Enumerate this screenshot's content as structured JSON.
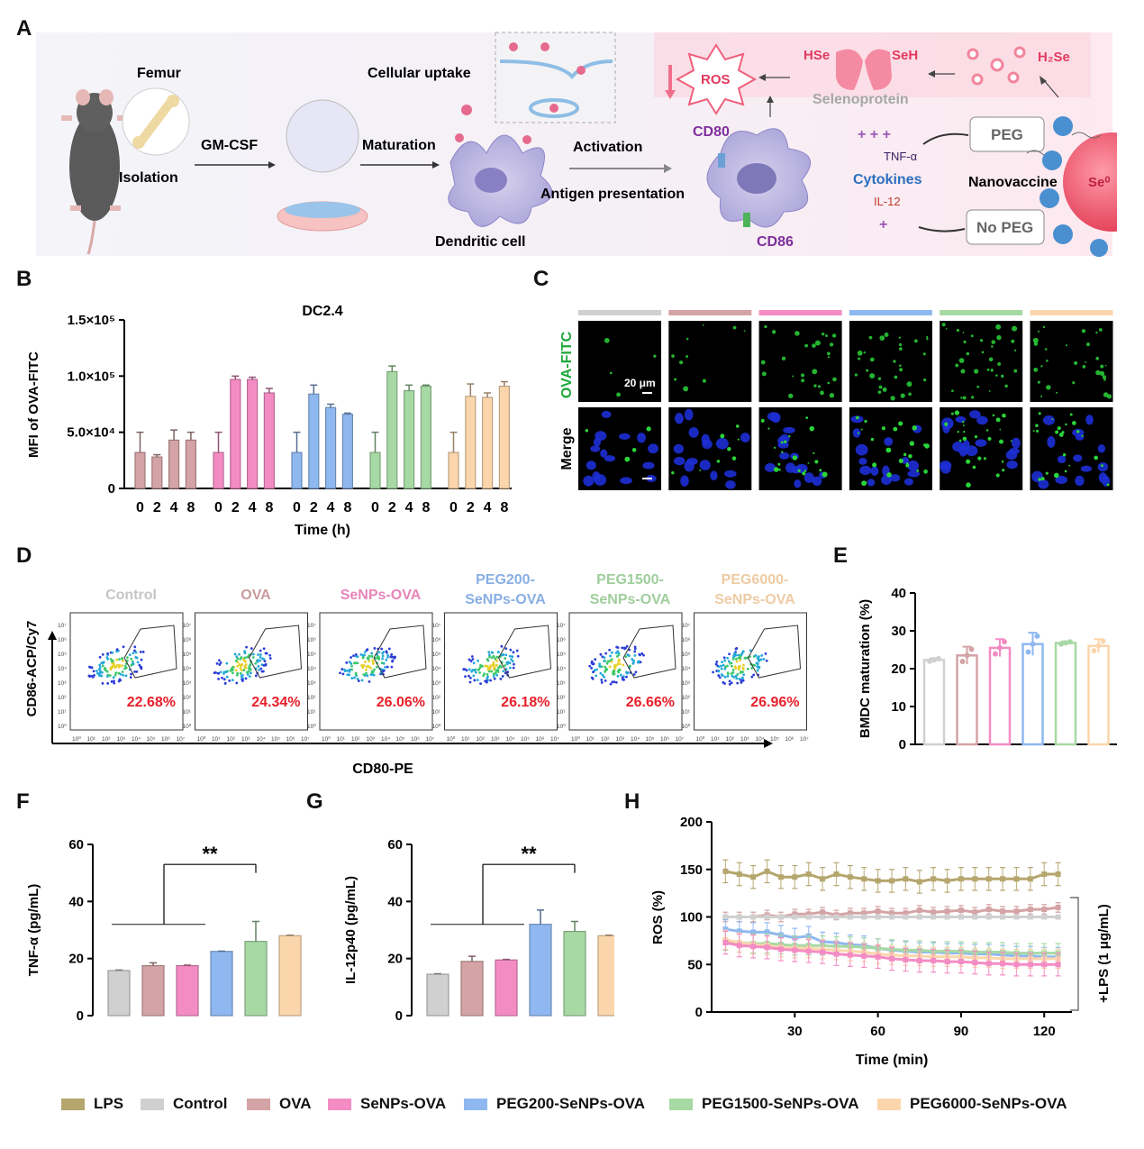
{
  "colors": {
    "LPS": "#b5a66e",
    "Control": "#d0d0d0",
    "OVA": "#d4a3a5",
    "SeNPs-OVA": "#f48cc4",
    "PEG200-SeNPs-OVA": "#8fb8f0",
    "PEG1500-SeNPs-OVA": "#a7d9a4",
    "PEG6000-SeNPs-OVA": "#fbd6ac"
  },
  "panels": {
    "A": "A",
    "B": "B",
    "C": "C",
    "D": "D",
    "E": "E",
    "F": "F",
    "G": "G",
    "H": "H"
  },
  "schematic": {
    "femur": "Femur",
    "isolation": "Isolation",
    "gmcsf": "GM-CSF",
    "cellular_uptake": "Cellular uptake",
    "maturation": "Maturation",
    "dendritic_cell": "Dendritic cell",
    "activation": "Activation",
    "antigen_presentation": "Antigen presentation",
    "cd80": "CD80",
    "cd86": "CD86",
    "ros": "ROS",
    "hse": "HSe",
    "seh": "SeH",
    "selenoprotein": "Selenoprotein",
    "h2se": "H₂Se",
    "tnfa": "TNF-α",
    "cytokines": "Cytokines",
    "il12": "IL-12",
    "peg": "PEG",
    "no_peg": "No PEG",
    "nanovaccine": "Nanovaccine",
    "se0": "Se⁰"
  },
  "microscopy": {
    "row1": "OVA-FITC",
    "row2": "Merge",
    "scale": "20 μm",
    "groups": [
      "Control",
      "OVA",
      "SeNPs-OVA",
      "PEG200-SeNPs-OVA",
      "PEG1500-SeNPs-OVA",
      "PEG6000-SeNPs-OVA"
    ]
  },
  "flow": {
    "titles": [
      "Control",
      "OVA",
      "SeNPs-OVA",
      "PEG200-\nSeNPs-OVA",
      "PEG1500-\nSeNPs-OVA",
      "PEG6000-\nSeNPs-OVA"
    ],
    "percents": [
      "22.68%",
      "24.34%",
      "26.06%",
      "26.18%",
      "26.66%",
      "26.96%"
    ],
    "tick_labels": [
      "10⁰",
      "10¹",
      "10²",
      "10³",
      "10⁴",
      "10⁵",
      "10⁶",
      "10⁷"
    ],
    "xlabel": "CD80-PE",
    "ylabel": "CD86-ACP/Cy7"
  },
  "chart_data": [
    {
      "panel": "B",
      "type": "bar",
      "title": "DC2.4",
      "xlabel": "Time (h)",
      "ylabel": "MFI of OVA-FITC",
      "ylim": [
        0,
        150000
      ],
      "yticks": [
        0,
        50000,
        100000,
        150000
      ],
      "ytick_labels": [
        "0",
        "5.0×10⁴",
        "1.0×10⁵",
        "1.5×10⁵"
      ],
      "categories": [
        "0",
        "2",
        "4",
        "8"
      ],
      "series": [
        {
          "group": "OVA",
          "values": [
            32000,
            28000,
            43000,
            43000
          ],
          "errors": [
            18000,
            2000,
            9000,
            7000
          ]
        },
        {
          "group": "SeNPs-OVA",
          "values": [
            32000,
            97000,
            97000,
            85000
          ],
          "errors": [
            18000,
            3000,
            2000,
            4000
          ]
        },
        {
          "group": "PEG200-SeNPs-OVA",
          "values": [
            32000,
            84000,
            72000,
            66000
          ],
          "errors": [
            18000,
            8000,
            3000,
            1000
          ]
        },
        {
          "group": "PEG1500-SeNPs-OVA",
          "values": [
            32000,
            104000,
            87000,
            91000
          ],
          "errors": [
            18000,
            5000,
            5000,
            1000
          ]
        },
        {
          "group": "PEG6000-SeNPs-OVA",
          "values": [
            32000,
            82000,
            81000,
            91000
          ],
          "errors": [
            18000,
            11000,
            4000,
            4000
          ]
        }
      ]
    },
    {
      "panel": "E",
      "type": "bar",
      "ylabel": "BMDC maturation (%)",
      "ylim": [
        0,
        40
      ],
      "yticks": [
        0,
        10,
        20,
        30,
        40
      ],
      "categories": [
        "Control",
        "OVA",
        "SeNPs-OVA",
        "PEG200-SeNPs-OVA",
        "PEG1500-SeNPs-OVA",
        "PEG6000-SeNPs-OVA"
      ],
      "values": [
        22.3,
        23.5,
        25.5,
        26.5,
        26.8,
        26.0
      ],
      "errors": [
        0.5,
        2.3,
        2.3,
        3.0,
        0.4,
        1.8
      ]
    },
    {
      "panel": "F",
      "type": "bar",
      "ylabel": "TNF-α (pg/mL)",
      "ylim": [
        0,
        60
      ],
      "yticks": [
        0,
        20,
        40,
        60
      ],
      "categories": [
        "Control",
        "OVA",
        "SeNPs-OVA",
        "PEG200-SeNPs-OVA",
        "PEG1500-SeNPs-OVA",
        "PEG6000-SeNPs-OVA"
      ],
      "values": [
        15.8,
        17.5,
        17.5,
        22.5,
        26.0,
        28.0
      ],
      "errors": [
        0.2,
        1.0,
        0.2,
        0.1,
        7.0,
        0.2
      ],
      "annotation": "**"
    },
    {
      "panel": "G",
      "type": "bar",
      "ylabel": "IL-12p40 (pg/mL)",
      "ylim": [
        0,
        60
      ],
      "yticks": [
        0,
        20,
        40,
        60
      ],
      "categories": [
        "Control",
        "OVA",
        "SeNPs-OVA",
        "PEG200-SeNPs-OVA",
        "PEG1500-SeNPs-OVA",
        "PEG6000-SeNPs-OVA"
      ],
      "values": [
        14.5,
        19.0,
        19.5,
        32.0,
        29.5,
        28.0
      ],
      "errors": [
        0.2,
        1.8,
        0.2,
        5.0,
        3.5,
        0.2
      ],
      "annotation": "**"
    },
    {
      "panel": "H",
      "type": "line",
      "xlabel": "Time (min)",
      "ylabel": "ROS (%)",
      "xlim": [
        0,
        130
      ],
      "xticks": [
        30,
        60,
        90,
        120
      ],
      "ylim": [
        0,
        200
      ],
      "yticks": [
        0,
        50,
        100,
        150,
        200
      ],
      "annotation": "+LPS (1 μg/mL)",
      "x": [
        5,
        10,
        15,
        20,
        25,
        30,
        35,
        40,
        45,
        50,
        55,
        60,
        65,
        70,
        75,
        80,
        85,
        90,
        95,
        100,
        105,
        110,
        115,
        120,
        125
      ],
      "series": [
        {
          "group": "LPS",
          "values": [
            148,
            145,
            142,
            148,
            142,
            142,
            145,
            140,
            145,
            142,
            140,
            138,
            138,
            140,
            137,
            140,
            138,
            140,
            140,
            140,
            140,
            140,
            140,
            145,
            145
          ],
          "error": 12
        },
        {
          "group": "OVA",
          "values": [
            100,
            100,
            100,
            102,
            100,
            103,
            103,
            105,
            102,
            104,
            104,
            106,
            104,
            104,
            107,
            105,
            106,
            107,
            105,
            108,
            106,
            106,
            108,
            108,
            110
          ],
          "error": 5
        },
        {
          "group": "Control",
          "values": [
            100,
            100,
            100,
            100,
            100,
            100,
            100,
            100,
            100,
            100,
            100,
            100,
            100,
            100,
            100,
            100,
            100,
            100,
            100,
            100,
            100,
            100,
            100,
            100,
            100
          ],
          "error": 1
        },
        {
          "group": "PEG200-SeNPs-OVA",
          "values": [
            87,
            85,
            84,
            84,
            81,
            78,
            80,
            74,
            73,
            71,
            70,
            67,
            65,
            64,
            63,
            63,
            62,
            62,
            61,
            61,
            60,
            59,
            59,
            58,
            58
          ],
          "error": 10
        },
        {
          "group": "PEG1500-SeNPs-OVA",
          "values": [
            75,
            73,
            72,
            72,
            71,
            70,
            70,
            70,
            69,
            69,
            68,
            67,
            66,
            65,
            65,
            64,
            64,
            64,
            63,
            63,
            63,
            62,
            62,
            62,
            62
          ],
          "error": 10
        },
        {
          "group": "PEG6000-SeNPs-OVA",
          "values": [
            76,
            73,
            71,
            70,
            68,
            67,
            67,
            66,
            65,
            64,
            63,
            61,
            60,
            59,
            59,
            58,
            58,
            58,
            57,
            57,
            56,
            56,
            56,
            56,
            56
          ],
          "error": 10
        },
        {
          "group": "SeNPs-OVA",
          "values": [
            73,
            70,
            69,
            68,
            66,
            65,
            64,
            63,
            61,
            60,
            59,
            58,
            56,
            55,
            54,
            54,
            53,
            53,
            52,
            51,
            51,
            50,
            50,
            50,
            50
          ],
          "error": 12
        }
      ]
    }
  ],
  "legend": [
    {
      "group": "LPS",
      "label": "LPS"
    },
    {
      "group": "Control",
      "label": "Control"
    },
    {
      "group": "OVA",
      "label": "OVA"
    },
    {
      "group": "SeNPs-OVA",
      "label": "SeNPs-OVA"
    },
    {
      "group": "PEG200-SeNPs-OVA",
      "label": "PEG200-SeNPs-OVA"
    },
    {
      "group": "PEG1500-SeNPs-OVA",
      "label": "PEG1500-SeNPs-OVA"
    },
    {
      "group": "PEG6000-SeNPs-OVA",
      "label": "PEG6000-SeNPs-OVA"
    }
  ]
}
